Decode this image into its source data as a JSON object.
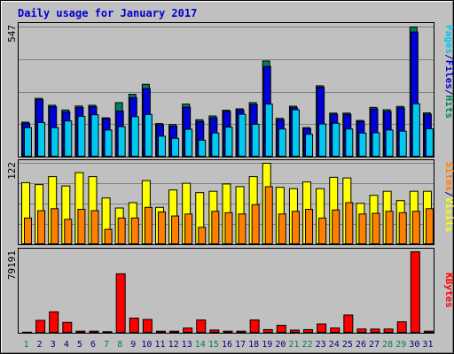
{
  "colors": {
    "background": "#ffffff",
    "frame": "#c0c0c0",
    "plot_bg": "#c0c0c0",
    "gridline": "#808080",
    "hits": "#00805c",
    "files": "#0000d8",
    "pages": "#00c8f0",
    "visits": "#ffff00",
    "sites": "#ff8000",
    "kbytes": "#ff0000",
    "weekend_label": "#00805c",
    "weekday_label": "#000080"
  },
  "chart_data": [
    {
      "type": "bar",
      "title": "Daily usage for January 2017",
      "ymax_label": "547",
      "ylim": [
        0,
        547
      ],
      "legend": {
        "placement": "right",
        "parts": [
          {
            "label": "Pages",
            "color": "#00c8f0"
          },
          {
            "label": "/",
            "color": "#000080"
          },
          {
            "label": "Files",
            "color": "#0000d8"
          },
          {
            "label": "/",
            "color": "#000080"
          },
          {
            "label": "Hits",
            "color": "#00805c"
          }
        ]
      },
      "grid": true,
      "categories": [
        "1",
        "2",
        "3",
        "4",
        "5",
        "6",
        "7",
        "8",
        "9",
        "10",
        "11",
        "12",
        "13",
        "14",
        "15",
        "16",
        "17",
        "18",
        "19",
        "20",
        "21",
        "22",
        "23",
        "24",
        "25",
        "26",
        "27",
        "28",
        "29",
        "30",
        "31"
      ],
      "weekend_days": [
        "1",
        "7",
        "8",
        "14",
        "15",
        "21",
        "22",
        "28",
        "29"
      ],
      "series": [
        {
          "key": "hits",
          "values": [
            147,
            247,
            218,
            198,
            215,
            218,
            165,
            229,
            264,
            306,
            141,
            137,
            223,
            157,
            173,
            197,
            203,
            229,
            404,
            163,
            214,
            124,
            300,
            185,
            185,
            154,
            209,
            199,
            213,
            547,
            186
          ]
        },
        {
          "key": "files",
          "values": [
            142,
            242,
            212,
            190,
            208,
            212,
            162,
            194,
            250,
            288,
            136,
            130,
            210,
            150,
            165,
            192,
            198,
            221,
            381,
            157,
            208,
            120,
            294,
            180,
            180,
            150,
            202,
            192,
            207,
            526,
            180
          ]
        },
        {
          "key": "pages",
          "values": [
            124,
            145,
            124,
            152,
            171,
            178,
            114,
            128,
            170,
            179,
            88,
            79,
            117,
            71,
            101,
            126,
            180,
            138,
            223,
            118,
            199,
            96,
            139,
            142,
            118,
            101,
            102,
            114,
            109,
            224,
            119
          ]
        }
      ]
    },
    {
      "type": "bar",
      "ymax_label": "122",
      "ylim": [
        0,
        122
      ],
      "legend": {
        "placement": "right",
        "parts": [
          {
            "label": "Sites",
            "color": "#ff8000"
          },
          {
            "label": "/",
            "color": "#000080"
          },
          {
            "label": "Visits",
            "color": "#ffff00"
          }
        ]
      },
      "grid": true,
      "categories": [
        "1",
        "2",
        "3",
        "4",
        "5",
        "6",
        "7",
        "8",
        "9",
        "10",
        "11",
        "12",
        "13",
        "14",
        "15",
        "16",
        "17",
        "18",
        "19",
        "20",
        "21",
        "22",
        "23",
        "24",
        "25",
        "26",
        "27",
        "28",
        "29",
        "30",
        "31"
      ],
      "series": [
        {
          "key": "visits",
          "values": [
            93,
            90,
            102,
            88,
            108,
            102,
            70,
            55,
            63,
            96,
            56,
            82,
            92,
            78,
            80,
            91,
            87,
            102,
            122,
            86,
            84,
            94,
            84,
            101,
            100,
            62,
            74,
            80,
            66,
            80,
            80
          ]
        },
        {
          "key": "sites",
          "values": [
            40,
            51,
            54,
            38,
            53,
            51,
            23,
            40,
            40,
            56,
            49,
            43,
            46,
            26,
            50,
            48,
            46,
            60,
            87,
            46,
            50,
            53,
            40,
            52,
            63,
            46,
            47,
            50,
            48,
            50,
            54
          ]
        }
      ]
    },
    {
      "type": "bar",
      "ymax_label": "79191",
      "ylim": [
        0,
        79191
      ],
      "legend": {
        "placement": "right",
        "parts": [
          {
            "label": "KBytes",
            "color": "#ff0000"
          }
        ]
      },
      "grid": false,
      "categories": [
        "1",
        "2",
        "3",
        "4",
        "5",
        "6",
        "7",
        "8",
        "9",
        "10",
        "11",
        "12",
        "13",
        "14",
        "15",
        "16",
        "17",
        "18",
        "19",
        "20",
        "21",
        "22",
        "23",
        "24",
        "25",
        "26",
        "27",
        "28",
        "29",
        "30",
        "31"
      ],
      "series": [
        {
          "key": "kbytes",
          "values": [
            1000,
            12500,
            20800,
            10500,
            2000,
            2000,
            1500,
            57800,
            14700,
            13400,
            2000,
            2000,
            5000,
            12900,
            3100,
            2000,
            2000,
            12900,
            3500,
            7700,
            3000,
            3500,
            9000,
            5100,
            17700,
            4100,
            4000,
            4100,
            11100,
            79191,
            2000
          ]
        }
      ]
    }
  ]
}
